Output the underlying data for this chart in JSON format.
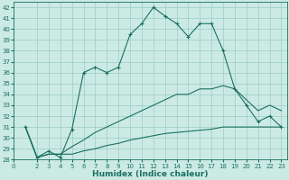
{
  "xlabel": "Humidex (Indice chaleur)",
  "bg_color": "#cceae4",
  "grid_color": "#99ccc4",
  "line_color": "#1a7060",
  "spine_color": "#1a7060",
  "xlim": [
    0,
    23.5
  ],
  "ylim": [
    28,
    42.5
  ],
  "yticks": [
    28,
    29,
    30,
    31,
    32,
    33,
    34,
    35,
    36,
    37,
    38,
    39,
    40,
    41,
    42
  ],
  "xticks": [
    0,
    2,
    3,
    4,
    5,
    6,
    7,
    8,
    9,
    10,
    11,
    12,
    13,
    14,
    15,
    16,
    17,
    18,
    19,
    20,
    21,
    22,
    23
  ],
  "line1_x": [
    1,
    2,
    3,
    4,
    5,
    6,
    7,
    8,
    9,
    10,
    11,
    12,
    13,
    14,
    15,
    16,
    17,
    18,
    19,
    20,
    21,
    22,
    23
  ],
  "line1_y": [
    31.0,
    28.2,
    28.8,
    28.2,
    30.8,
    36.0,
    36.5,
    36.0,
    36.5,
    39.5,
    40.5,
    42.0,
    41.2,
    40.5,
    39.3,
    40.5,
    40.5,
    38.0,
    34.5,
    33.0,
    31.5,
    32.0,
    31.0
  ],
  "line2_x": [
    1,
    2,
    3,
    4,
    5,
    6,
    7,
    8,
    9,
    10,
    11,
    12,
    13,
    14,
    15,
    16,
    17,
    18,
    19,
    20,
    21,
    22,
    23
  ],
  "line2_y": [
    31.0,
    28.2,
    28.5,
    28.5,
    28.5,
    28.8,
    29.0,
    29.3,
    29.5,
    29.8,
    30.0,
    30.2,
    30.4,
    30.5,
    30.6,
    30.7,
    30.8,
    31.0,
    31.0,
    31.0,
    31.0,
    31.0,
    31.0
  ],
  "line3_x": [
    1,
    2,
    3,
    4,
    5,
    6,
    7,
    8,
    9,
    10,
    11,
    12,
    13,
    14,
    15,
    16,
    17,
    18,
    19,
    20,
    21,
    22,
    23
  ],
  "line3_y": [
    31.0,
    28.2,
    28.5,
    28.5,
    29.2,
    29.8,
    30.5,
    31.0,
    31.5,
    32.0,
    32.5,
    33.0,
    33.5,
    34.0,
    34.0,
    34.5,
    34.5,
    34.8,
    34.5,
    33.5,
    32.5,
    33.0,
    32.5
  ],
  "tick_fontsize": 5.0,
  "xlabel_fontsize": 6.5,
  "lw": 0.8
}
